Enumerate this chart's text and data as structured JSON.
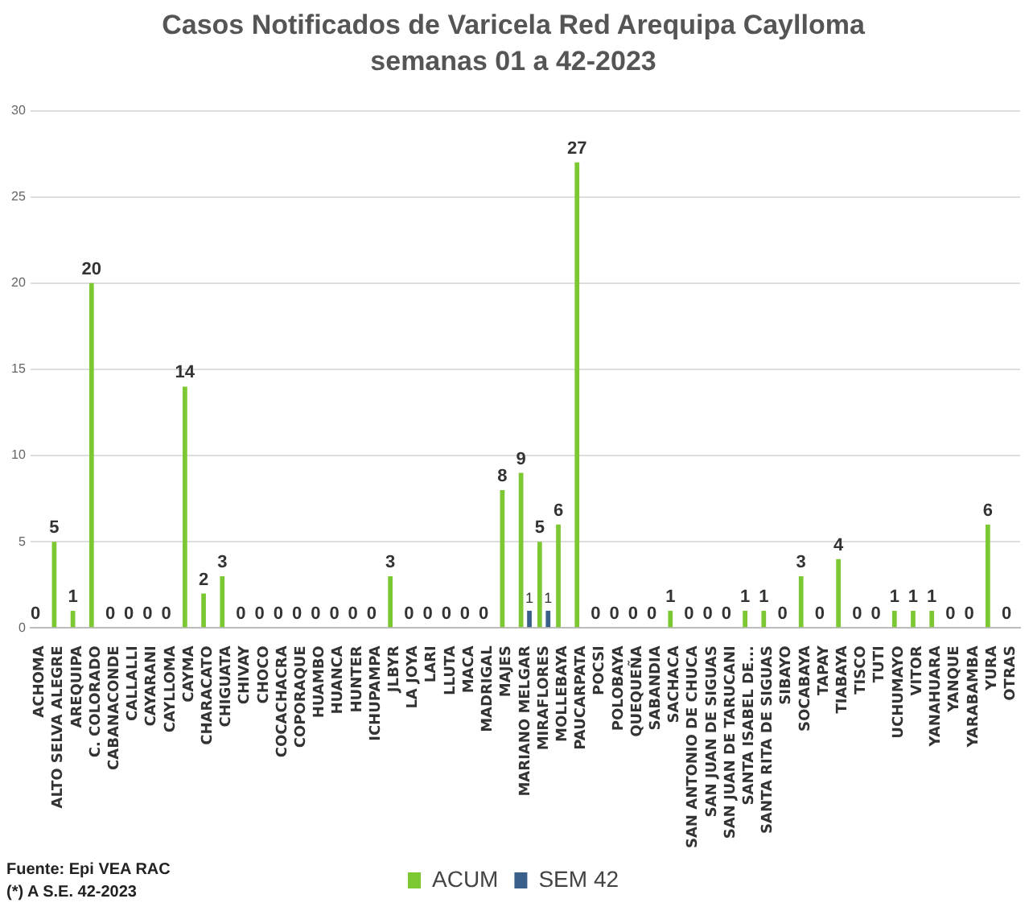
{
  "chart_data": {
    "type": "bar",
    "title": "Casos Notificados de Varicela Red Arequipa Caylloma",
    "subtitle": "semanas 01 a 42-2023",
    "categories": [
      "ACHOMA",
      "ALTO SELVA ALEGRE",
      "AREQUIPA",
      "C. COLORADO",
      "CABANACONDE",
      "CALLALLI",
      "CAYARANI",
      "CAYLLOMA",
      "CAYMA",
      "CHARACATO",
      "CHIGUATA",
      "CHIVAY",
      "CHOCO",
      "COCACHACRA",
      "COPORAQUE",
      "HUAMBO",
      "HUANCA",
      "HUNTER",
      "ICHUPAMPA",
      "JLBYR",
      "LA JOYA",
      "LARI",
      "LLUTA",
      "MACA",
      "MADRIGAL",
      "MAJES",
      "MARIANO MELGAR",
      "MIRAFLORES",
      "MOLLEBAYA",
      "PAUCARPATA",
      "POCSI",
      "POLOBAYA",
      "QUEQUEÑA",
      "SABANDIA",
      "SACHACA",
      "SAN ANTONIO DE CHUCA",
      "SAN JUAN DE SIGUAS",
      "SAN JUAN DE TARUCANI",
      "SANTA ISABEL DE...",
      "SANTA RITA DE SIGUAS",
      "SIBAYO",
      "SOCABAYA",
      "TAPAY",
      "TIABAYA",
      "TISCO",
      "TUTI",
      "UCHUMAYO",
      "VITOR",
      "YANAHUARA",
      "YANQUE",
      "YARABAMBA",
      "YURA",
      "OTRAS"
    ],
    "series": [
      {
        "name": "ACUM",
        "color": "#7cc832",
        "values": [
          0,
          5,
          1,
          20,
          0,
          0,
          0,
          0,
          14,
          2,
          3,
          0,
          0,
          0,
          0,
          0,
          0,
          0,
          0,
          3,
          0,
          0,
          0,
          0,
          0,
          8,
          9,
          5,
          6,
          27,
          0,
          0,
          0,
          0,
          1,
          0,
          0,
          0,
          1,
          1,
          0,
          3,
          0,
          4,
          0,
          0,
          1,
          1,
          1,
          0,
          0,
          6,
          0
        ]
      },
      {
        "name": "SEM 42",
        "color": "#3a5f8a",
        "values": [
          0,
          0,
          0,
          0,
          0,
          0,
          0,
          0,
          0,
          0,
          0,
          0,
          0,
          0,
          0,
          0,
          0,
          0,
          0,
          0,
          0,
          0,
          0,
          0,
          0,
          0,
          1,
          1,
          0,
          0,
          0,
          0,
          0,
          0,
          0,
          0,
          0,
          0,
          0,
          0,
          0,
          0,
          0,
          0,
          0,
          0,
          0,
          0,
          0,
          0,
          0,
          0,
          0
        ],
        "value_labels": [
          null,
          null,
          null,
          null,
          null,
          null,
          null,
          null,
          null,
          null,
          null,
          null,
          null,
          null,
          null,
          null,
          null,
          null,
          null,
          null,
          null,
          null,
          null,
          null,
          null,
          null,
          "1",
          "1",
          null,
          null,
          null,
          null,
          null,
          null,
          null,
          null,
          null,
          null,
          null,
          null,
          null,
          null,
          null,
          null,
          null,
          null,
          null,
          null,
          null,
          null,
          null,
          null,
          null
        ]
      }
    ],
    "ylim": [
      0,
      30
    ],
    "yticks": [
      0,
      5,
      10,
      15,
      20,
      25,
      30
    ],
    "grid": "y",
    "legend": "bottom",
    "data_labels": true,
    "annotations": [
      "Fuente: Epi VEA RAC",
      "(*) A S.E. 42-2023"
    ]
  }
}
